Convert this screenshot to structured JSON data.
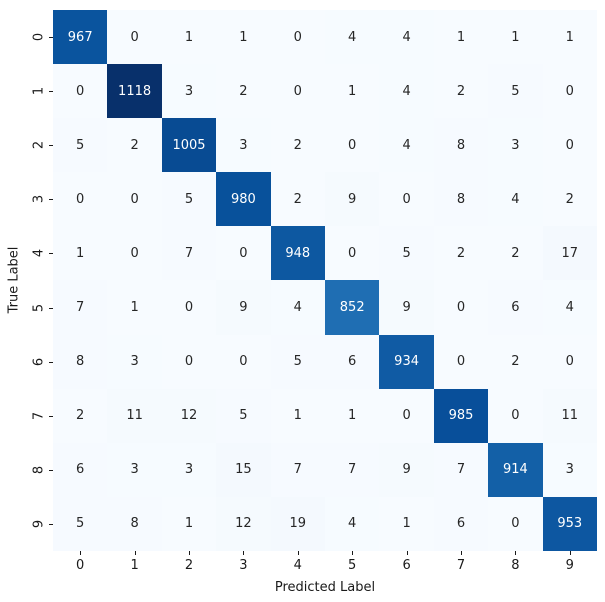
{
  "chart_data": {
    "type": "heatmap",
    "xlabel": "Predicted Label",
    "ylabel": "True Label",
    "x_tick_labels": [
      "0",
      "1",
      "2",
      "3",
      "4",
      "5",
      "6",
      "7",
      "8",
      "9"
    ],
    "y_tick_labels": [
      "0",
      "1",
      "2",
      "3",
      "4",
      "5",
      "6",
      "7",
      "8",
      "9"
    ],
    "matrix": [
      [
        967,
        0,
        1,
        1,
        0,
        4,
        4,
        1,
        1,
        1
      ],
      [
        0,
        1118,
        3,
        2,
        0,
        1,
        4,
        2,
        5,
        0
      ],
      [
        5,
        2,
        1005,
        3,
        2,
        0,
        4,
        8,
        3,
        0
      ],
      [
        0,
        0,
        5,
        980,
        2,
        9,
        0,
        8,
        4,
        2
      ],
      [
        1,
        0,
        7,
        0,
        948,
        0,
        5,
        2,
        2,
        17
      ],
      [
        7,
        1,
        0,
        9,
        4,
        852,
        9,
        0,
        6,
        4
      ],
      [
        8,
        3,
        0,
        0,
        5,
        6,
        934,
        0,
        2,
        0
      ],
      [
        2,
        11,
        12,
        5,
        1,
        1,
        0,
        985,
        0,
        11
      ],
      [
        6,
        3,
        3,
        15,
        7,
        7,
        9,
        7,
        914,
        3
      ],
      [
        5,
        8,
        1,
        12,
        19,
        4,
        1,
        6,
        0,
        953
      ]
    ],
    "vmin": 0,
    "vmax": 1118,
    "colormap": "Blues",
    "colormap_stops": [
      {
        "pos": 0.0,
        "rgb": [
          247,
          251,
          255
        ]
      },
      {
        "pos": 0.125,
        "rgb": [
          222,
          235,
          247
        ]
      },
      {
        "pos": 0.25,
        "rgb": [
          198,
          219,
          239
        ]
      },
      {
        "pos": 0.375,
        "rgb": [
          158,
          202,
          225
        ]
      },
      {
        "pos": 0.5,
        "rgb": [
          107,
          174,
          214
        ]
      },
      {
        "pos": 0.625,
        "rgb": [
          66,
          146,
          198
        ]
      },
      {
        "pos": 0.75,
        "rgb": [
          33,
          113,
          181
        ]
      },
      {
        "pos": 0.875,
        "rgb": [
          8,
          81,
          156
        ]
      },
      {
        "pos": 1.0,
        "rgb": [
          8,
          48,
          107
        ]
      }
    ],
    "annot_color_on_light": "#262626",
    "annot_color_on_dark": "#ffffff",
    "tick_color": "#1a1a1a",
    "legend": "none",
    "grid": "off"
  }
}
